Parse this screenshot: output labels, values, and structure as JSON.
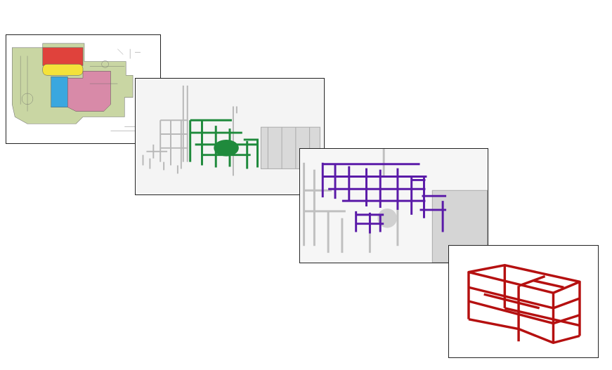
{
  "panels": [
    {
      "id": "site-plan",
      "colors": {
        "base": "#c9d6a3",
        "red": "#e0423c",
        "yellow": "#f4e23a",
        "blue": "#3aa7df",
        "pink": "#d88aa8"
      }
    },
    {
      "id": "plant-model-green",
      "colors": {
        "structure": "#c8c8c8",
        "highlight": "#1f8a3c",
        "background": "#f2f2f2"
      }
    },
    {
      "id": "plant-model-purple",
      "colors": {
        "structure": "#cfcfcf",
        "highlight": "#5a1aa8",
        "background": "#f4f4f4"
      }
    },
    {
      "id": "steel-frame-red",
      "colors": {
        "frame": "#b51010",
        "background": "#ffffff"
      }
    }
  ]
}
